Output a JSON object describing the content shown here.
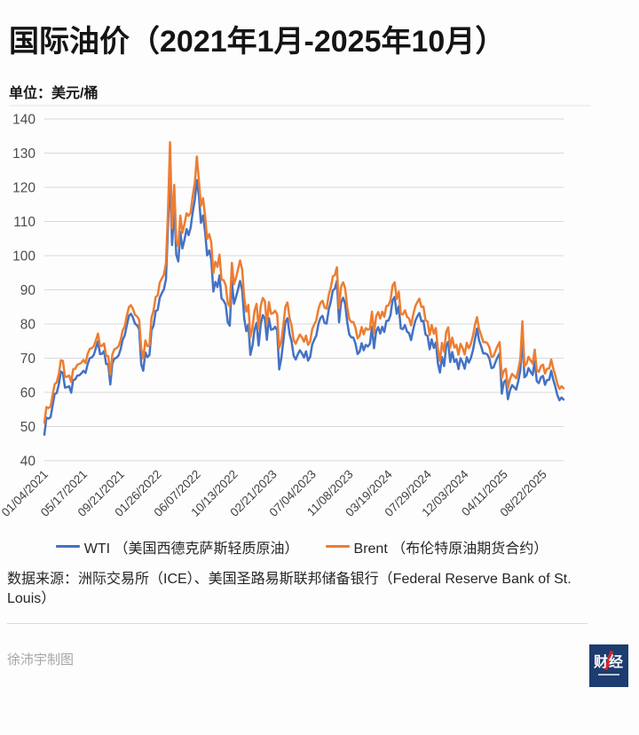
{
  "header": {
    "title": "国际油价（2021年1月-2025年10月）",
    "unit_label": "单位：美元/桶"
  },
  "chart_data": {
    "type": "line",
    "title": "国际油价（2021年1月-2025年10月）",
    "xlabel": "",
    "ylabel": "美元/桶",
    "ylim": [
      40,
      140
    ],
    "ytick_interval": 10,
    "grid": true,
    "legend_position": "bottom",
    "sampling": "weekly approximation of daily prices",
    "x_tick_labels": [
      "01/04/2021",
      "05/17/2021",
      "09/21/2021",
      "01/26/2022",
      "06/07/2022",
      "10/13/2022",
      "02/21/2023",
      "07/04/2023",
      "11/08/2023",
      "03/19/2024",
      "07/29/2024",
      "12/03/2024",
      "04/11/2025",
      "08/22/2025"
    ],
    "x_tick_indices": [
      0,
      19,
      37,
      55,
      74,
      92,
      111,
      130,
      148,
      167,
      186,
      204,
      223,
      242
    ],
    "series": [
      {
        "name": "WTI （美国西德克萨斯轻质原油）",
        "short": "WTI",
        "color": "#4472c4",
        "values": [
          47.6,
          52.6,
          52.3,
          52.7,
          56.2,
          59.5,
          59.8,
          62.4,
          66.1,
          65.6,
          61.4,
          61.5,
          61.8,
          59.9,
          63.6,
          63.8,
          64.9,
          65.0,
          65.6,
          66.3,
          65.7,
          68.3,
          70.0,
          70.2,
          71.0,
          72.9,
          74.9,
          71.2,
          71.3,
          72.1,
          68.3,
          68.2,
          62.3,
          68.5,
          69.9,
          70.1,
          70.8,
          72.6,
          75.4,
          76.6,
          79.6,
          82.3,
          83.0,
          81.9,
          80.1,
          79.6,
          78.5,
          68.2,
          66.3,
          71.7,
          70.3,
          70.9,
          78.2,
          79.5,
          83.8,
          84.1,
          87.7,
          89.0,
          90.1,
          93.1,
          108.7,
          123.7,
          103.1,
          114.9,
          100.3,
          98.3,
          106.9,
          102.1,
          104.7,
          107.8,
          106.0,
          108.2,
          112.6,
          116.4,
          122.1,
          117.6,
          109.6,
          111.8,
          106.9,
          100.1,
          101.5,
          99.0,
          89.5,
          92.3,
          90.8,
          94.2,
          87.5,
          86.8,
          85.7,
          80.5,
          79.5,
          92.6,
          85.9,
          87.9,
          90.1,
          92.6,
          89.9,
          81.6,
          77.9,
          79.9,
          71.0,
          73.6,
          78.4,
          80.3,
          73.7,
          79.9,
          82.6,
          81.6,
          75.4,
          81.7,
          78.3,
          78.5,
          79.2,
          78.1,
          66.7,
          70.1,
          75.1,
          80.5,
          81.7,
          77.1,
          74.8,
          70.7,
          69.6,
          71.1,
          72.3,
          71.4,
          70.2,
          72.0,
          69.3,
          70.4,
          74.0,
          75.4,
          76.6,
          80.0,
          81.8,
          82.4,
          80.3,
          80.1,
          84.2,
          86.5,
          89.8,
          90.3,
          92.6,
          80.5,
          86.3,
          87.7,
          85.9,
          80.4,
          76.9,
          76.1,
          76.0,
          74.3,
          71.2,
          71.9,
          74.4,
          72.3,
          73.9,
          73.4,
          74.2,
          79.2,
          72.9,
          77.8,
          79.1,
          77.2,
          79.2,
          77.7,
          80.9,
          81.0,
          82.6,
          86.9,
          87.9,
          83.0,
          85.2,
          78.7,
          78.5,
          79.7,
          77.8,
          77.3,
          75.3,
          78.3,
          80.9,
          82.2,
          83.2,
          80.8,
          80.9,
          76.9,
          76.5,
          72.6,
          75.5,
          73.0,
          74.6,
          68.5,
          65.8,
          70.3,
          67.7,
          73.4,
          74.8,
          68.9,
          71.8,
          68.9,
          69.7,
          66.8,
          70.0,
          68.7,
          66.9,
          70.3,
          68.7,
          70.0,
          72.3,
          75.6,
          78.7,
          75.2,
          73.5,
          71.4,
          71.4,
          71.1,
          69.9,
          67.1,
          67.3,
          68.9,
          70.3,
          71.4,
          59.6,
          63.0,
          63.6,
          58.0,
          60.6,
          62.1,
          61.5,
          60.8,
          63.2,
          66.5,
          76.0,
          64.4,
          65.0,
          67.1,
          66.0,
          65.1,
          69.2,
          63.3,
          62.7,
          64.4,
          64.8,
          62.2,
          63.6,
          63.7,
          66.3,
          63.7,
          61.7,
          59.2,
          57.7,
          58.5,
          57.9
        ]
      },
      {
        "name": "Brent （布伦特原油期货合约）",
        "short": "Brent",
        "color": "#ed7d31",
        "values": [
          51.1,
          55.7,
          55.4,
          55.9,
          59.3,
          62.4,
          62.9,
          65.4,
          69.4,
          69.2,
          64.5,
          64.6,
          64.9,
          63.0,
          66.8,
          66.9,
          68.1,
          68.3,
          68.7,
          69.5,
          68.6,
          71.3,
          72.7,
          72.9,
          73.5,
          75.2,
          77.2,
          73.6,
          73.6,
          74.3,
          70.7,
          70.6,
          65.2,
          71.1,
          72.6,
          72.9,
          73.5,
          75.3,
          78.1,
          79.3,
          82.4,
          84.9,
          85.5,
          84.4,
          82.7,
          82.2,
          81.2,
          72.9,
          69.9,
          75.2,
          73.5,
          73.8,
          81.8,
          84.0,
          87.9,
          88.4,
          92.1,
          93.3,
          94.4,
          97.9,
          112.9,
          133.2,
          108.0,
          120.7,
          104.7,
          102.8,
          111.7,
          106.7,
          109.3,
          112.4,
          111.6,
          112.6,
          117.4,
          121.3,
          129.0,
          122.0,
          114.6,
          116.8,
          111.6,
          104.9,
          106.3,
          104.0,
          94.9,
          98.2,
          96.7,
          100.3,
          93.0,
          92.8,
          91.4,
          86.2,
          85.1,
          97.9,
          91.6,
          93.5,
          96.0,
          98.6,
          95.9,
          87.6,
          83.6,
          85.6,
          76.1,
          79.0,
          83.9,
          85.9,
          78.6,
          85.3,
          87.6,
          86.7,
          79.9,
          86.4,
          83.0,
          83.2,
          83.9,
          82.8,
          73.0,
          75.0,
          79.8,
          85.1,
          86.3,
          81.7,
          79.5,
          75.3,
          74.2,
          75.6,
          76.9,
          76.1,
          74.8,
          76.6,
          73.9,
          74.9,
          78.5,
          79.9,
          81.1,
          84.4,
          86.2,
          86.8,
          84.8,
          84.5,
          88.5,
          90.6,
          93.9,
          94.3,
          96.6,
          84.6,
          90.9,
          92.2,
          90.5,
          84.9,
          81.4,
          80.6,
          80.6,
          78.9,
          75.8,
          76.6,
          79.1,
          77.0,
          78.8,
          78.3,
          78.6,
          83.6,
          77.3,
          82.2,
          83.5,
          81.6,
          83.6,
          82.1,
          85.3,
          85.4,
          87.0,
          91.2,
          92.2,
          87.3,
          89.5,
          83.0,
          82.8,
          84.0,
          82.1,
          81.6,
          79.6,
          82.6,
          85.2,
          86.4,
          87.4,
          85.0,
          85.1,
          81.1,
          80.7,
          76.8,
          79.7,
          77.2,
          78.8,
          72.7,
          69.2,
          74.5,
          71.9,
          77.6,
          79.0,
          73.1,
          76.0,
          73.1,
          73.9,
          71.0,
          74.2,
          72.9,
          71.1,
          74.5,
          72.9,
          74.2,
          76.5,
          79.8,
          82.0,
          78.5,
          76.8,
          74.7,
          74.7,
          74.4,
          73.2,
          70.4,
          70.6,
          72.2,
          73.6,
          74.7,
          64.2,
          66.3,
          66.9,
          61.3,
          63.9,
          65.4,
          64.8,
          64.1,
          66.5,
          69.8,
          80.8,
          67.7,
          68.3,
          70.4,
          69.3,
          68.4,
          72.5,
          66.6,
          66.0,
          67.7,
          68.1,
          65.5,
          66.9,
          67.0,
          69.6,
          67.0,
          65.0,
          62.5,
          61.0,
          61.8,
          61.2
        ]
      }
    ],
    "style": {
      "grid_color": "#d9d9d9",
      "ytick_color": "#4d4d4d",
      "xtick_color": "#404040",
      "line_width": 2.5
    }
  },
  "legend": {
    "items": [
      {
        "label": "WTI （美国西德克萨斯轻质原油）",
        "color": "#4472c4"
      },
      {
        "label": "Brent （布伦特原油期货合约）",
        "color": "#ed7d31"
      }
    ]
  },
  "footer": {
    "source": "数据来源：洲际交易所（ICE）、美国圣路易斯联邦储备银行（Federal Reserve Bank of St. Louis）",
    "credit": "徐沛宇制图",
    "logo_text": "财经"
  }
}
